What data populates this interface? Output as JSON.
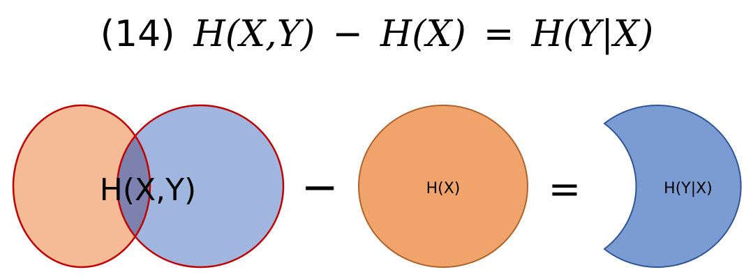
{
  "equation": {
    "number": "(14)",
    "lhs": "H(X,Y)",
    "minus": "−",
    "term2": "H(X)",
    "equals": "=",
    "rhs": "H(Y|X)"
  },
  "venn": {
    "label": "H(X,Y)",
    "left_fill": "#f4bb96",
    "right_fill": "#a1b6de",
    "overlap_fill": "#7c82ad",
    "stroke": "#c00000"
  },
  "operator_minus": "−",
  "circle_x": {
    "label": "H(X)",
    "fill": "#f0a46c",
    "stroke": "#b0622a"
  },
  "operator_equals": "=",
  "crescent": {
    "label": "H(Y|X)",
    "fill": "#7b9bd3",
    "stroke": "#2f5597"
  }
}
